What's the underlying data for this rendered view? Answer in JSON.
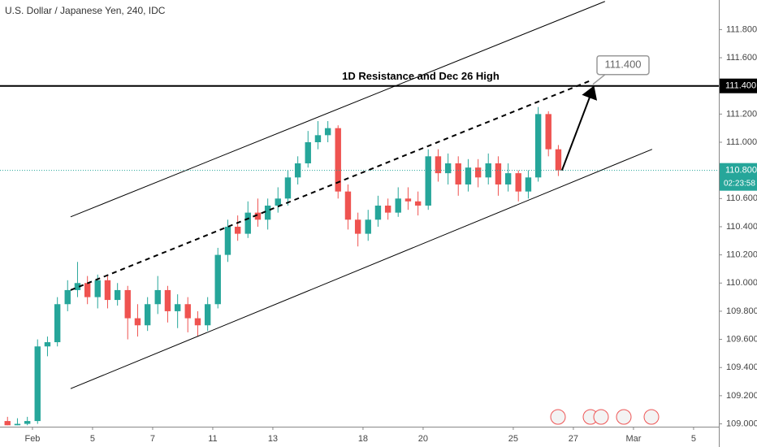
{
  "chart_data": {
    "type": "candlestick",
    "title": "U.S. Dollar / Japanese Yen, 240, IDC",
    "xlim": [
      -1.08,
      22.84
    ],
    "ylim": [
      108.98,
      112.01
    ],
    "xticks": [
      {
        "value": 0,
        "label": "Feb"
      },
      {
        "value": 2,
        "label": "5"
      },
      {
        "value": 4,
        "label": "7"
      },
      {
        "value": 6,
        "label": "11"
      },
      {
        "value": 8,
        "label": "13"
      },
      {
        "value": 11,
        "label": "18"
      },
      {
        "value": 13,
        "label": "20"
      },
      {
        "value": 16,
        "label": "25"
      },
      {
        "value": 18,
        "label": "27"
      },
      {
        "value": 20,
        "label": "Mar"
      },
      {
        "value": 22,
        "label": "5"
      }
    ],
    "yticks": [
      {
        "value": 109.0,
        "label": "109.000"
      },
      {
        "value": 109.2,
        "label": "109.200"
      },
      {
        "value": 109.4,
        "label": "109.400"
      },
      {
        "value": 109.6,
        "label": "109.600"
      },
      {
        "value": 109.8,
        "label": "109.800"
      },
      {
        "value": 110.0,
        "label": "110.000"
      },
      {
        "value": 110.2,
        "label": "110.200"
      },
      {
        "value": 110.4,
        "label": "110.400"
      },
      {
        "value": 110.6,
        "label": "110.600"
      },
      {
        "value": 111.0,
        "label": "111.000"
      },
      {
        "value": 111.2,
        "label": "111.200"
      },
      {
        "value": 111.6,
        "label": "111.600"
      },
      {
        "value": 111.8,
        "label": "111.800"
      }
    ],
    "up_color": "#26a69a",
    "down_color": "#ef5350",
    "x": [
      -0.83,
      -0.5,
      -0.17,
      0.17,
      0.5,
      0.83,
      1.17,
      1.5,
      1.83,
      2.17,
      2.5,
      2.83,
      3.17,
      3.5,
      3.83,
      4.17,
      4.5,
      4.83,
      5.17,
      5.5,
      5.83,
      6.17,
      6.5,
      6.83,
      7.17,
      7.5,
      7.83,
      8.17,
      8.5,
      8.83,
      9.17,
      9.5,
      9.83,
      10.17,
      10.5,
      10.83,
      11.17,
      11.5,
      11.83,
      12.17,
      12.5,
      12.83,
      13.17,
      13.5,
      13.83,
      14.17,
      14.5,
      14.83,
      15.17,
      15.5,
      15.83,
      16.17,
      16.5,
      16.83,
      17.17,
      17.5
    ],
    "open": [
      109.02,
      108.99,
      109.0,
      109.02,
      109.55,
      109.58,
      109.85,
      109.95,
      110.0,
      109.9,
      110.02,
      109.88,
      109.95,
      109.75,
      109.7,
      109.85,
      109.95,
      109.8,
      109.85,
      109.75,
      109.7,
      109.85,
      110.2,
      110.4,
      110.35,
      110.5,
      110.45,
      110.55,
      110.6,
      110.75,
      110.85,
      111.0,
      111.05,
      111.1,
      110.65,
      110.45,
      110.35,
      110.45,
      110.55,
      110.5,
      110.6,
      110.58,
      110.55,
      110.9,
      110.78,
      110.85,
      110.7,
      110.82,
      110.75,
      110.85,
      110.7,
      110.78,
      110.65,
      110.75,
      111.2,
      110.95
    ],
    "high": [
      109.05,
      109.04,
      109.05,
      109.6,
      109.62,
      109.9,
      110.02,
      110.15,
      110.05,
      110.06,
      110.05,
      110.0,
      109.98,
      109.85,
      109.9,
      110.05,
      109.98,
      109.92,
      109.9,
      109.8,
      109.9,
      110.25,
      110.45,
      110.48,
      110.58,
      110.6,
      110.6,
      110.68,
      110.8,
      110.9,
      111.08,
      111.15,
      111.15,
      111.12,
      110.7,
      110.5,
      110.52,
      110.62,
      110.6,
      110.68,
      110.68,
      110.65,
      110.95,
      110.95,
      110.92,
      110.9,
      110.88,
      110.88,
      110.92,
      110.9,
      110.85,
      110.8,
      110.8,
      111.25,
      111.22,
      110.98
    ],
    "low": [
      108.99,
      108.99,
      108.99,
      109.0,
      109.48,
      109.55,
      109.8,
      109.9,
      109.85,
      109.82,
      109.82,
      109.84,
      109.6,
      109.62,
      109.66,
      109.78,
      109.72,
      109.68,
      109.65,
      109.62,
      109.66,
      109.82,
      110.15,
      110.3,
      110.32,
      110.4,
      110.38,
      110.5,
      110.55,
      110.7,
      110.82,
      110.95,
      111.0,
      110.6,
      110.38,
      110.26,
      110.3,
      110.4,
      110.45,
      110.47,
      110.52,
      110.48,
      110.52,
      110.72,
      110.7,
      110.62,
      110.65,
      110.68,
      110.7,
      110.62,
      110.65,
      110.58,
      110.6,
      110.72,
      110.9,
      110.76
    ],
    "close": [
      108.99,
      109.0,
      109.02,
      109.55,
      109.58,
      109.85,
      109.95,
      110.0,
      109.9,
      110.02,
      109.88,
      109.95,
      109.75,
      109.7,
      109.85,
      109.95,
      109.8,
      109.85,
      109.75,
      109.7,
      109.85,
      110.2,
      110.4,
      110.35,
      110.5,
      110.45,
      110.55,
      110.6,
      110.75,
      110.85,
      111.0,
      111.05,
      111.1,
      110.65,
      110.45,
      110.35,
      110.45,
      110.55,
      110.5,
      110.6,
      110.58,
      110.55,
      110.9,
      110.78,
      110.85,
      110.7,
      110.82,
      110.75,
      110.85,
      110.7,
      110.78,
      110.65,
      110.75,
      111.2,
      110.95,
      110.8
    ],
    "resistance": {
      "value": 111.4,
      "label": "111.400",
      "text": "1D Resistance and Dec 26 High",
      "callout": "111.400"
    },
    "last_price": {
      "value": 110.8,
      "label": "110.800",
      "countdown": "02:23:58",
      "color": "#26a69a"
    },
    "drawings": [
      {
        "style": "solid",
        "x": [
          1.27,
          19.05
        ],
        "y": [
          110.47,
          112.0
        ]
      },
      {
        "style": "solid",
        "x": [
          1.27,
          20.62
        ],
        "y": [
          109.25,
          110.95
        ]
      },
      {
        "style": "dashed",
        "x": [
          1.27,
          18.6
        ],
        "y": [
          109.95,
          111.44
        ]
      },
      {
        "style": "arrow",
        "x": [
          17.62,
          18.65
        ],
        "y": [
          110.8,
          111.38
        ]
      }
    ]
  }
}
